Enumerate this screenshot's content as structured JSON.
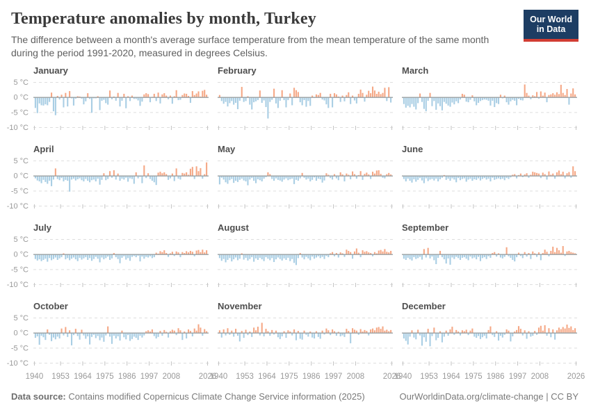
{
  "header": {
    "title": "Temperature anomalies by month, Turkey",
    "subtitle": "The difference between a month's average surface temperature from the mean temperature of the same month during the period 1991-2020, measured in degrees Celsius.",
    "logo": {
      "line1": "Our World",
      "line2": "in Data"
    }
  },
  "colors": {
    "positive_bar": "#f5a886",
    "negative_bar": "#a9cee4",
    "zero_line": "#9aa0a3",
    "grid_line": "#dedede",
    "tick_mark": "#c2c2c2",
    "axis_label": "#999999",
    "panel_title": "#4e4e4e",
    "logo_navy": "#1d3d63",
    "logo_red": "#d13d33"
  },
  "chart_data": {
    "type": "bar",
    "title": "Temperature anomalies by month, Turkey",
    "unit": "°C",
    "x_start_year": 1940,
    "x_end_year": 2025,
    "x_ticks": [
      1940,
      1953,
      1964,
      1975,
      1986,
      1997,
      2008,
      2026
    ],
    "y_ticks": [
      5,
      0,
      -5,
      -10
    ],
    "y_tick_labels": [
      "5 °C",
      "0 °C",
      "-5 °C",
      "-10 °C"
    ],
    "ylim": [
      -11.5,
      6.5
    ],
    "grid": "dashed horizontal lines at 5, -5, -10; solid zero line",
    "legend": "none",
    "series": [
      {
        "name": "January",
        "values": [
          -3.5,
          -5.2,
          -2.0,
          -2.6,
          -2.7,
          -2.3,
          -2.6,
          -1.5,
          1.6,
          -4.6,
          -5.9,
          0.5,
          -0.7,
          0.9,
          -3.3,
          1.5,
          -3.0,
          2.1,
          -0.3,
          -2.7,
          -0.4,
          0.4,
          0.3,
          -0.4,
          -2.3,
          -1.3,
          1.4,
          -0.5,
          -5.1,
          -0.3,
          -0.3,
          0.4,
          -4.2,
          -1.1,
          -0.8,
          -1.9,
          -2.4,
          2.3,
          -0.6,
          0.3,
          -1.1,
          1.5,
          -3.0,
          -1.1,
          1.2,
          -3.6,
          0.4,
          -1.2,
          0.6,
          -0.5,
          -0.5,
          -1.0,
          -2.8,
          -1.4,
          1.0,
          1.4,
          1.1,
          -1.6,
          0.2,
          1.2,
          -1.2,
          1.6,
          -2.0,
          1.0,
          1.4,
          0.6,
          -0.6,
          0.6,
          -2.1,
          0.4,
          2.4,
          -0.9,
          -0.8,
          0.8,
          1.3,
          1.2,
          0.5,
          -1.8,
          2.1,
          0.8,
          1.3,
          2.0,
          0.3,
          2.2,
          2.5,
          0.9
        ]
      },
      {
        "name": "February",
        "values": [
          0.8,
          -1.2,
          -2.1,
          -1.5,
          -3.0,
          -1.9,
          -1.2,
          -2.4,
          -1.8,
          -3.9,
          -1.1,
          3.5,
          -1.5,
          -1.2,
          0.4,
          -2.4,
          -4.0,
          -1.6,
          -1.3,
          -0.9,
          2.3,
          -1.8,
          -1.0,
          -3.2,
          -7.0,
          -1.5,
          -0.8,
          2.9,
          -2.0,
          -3.5,
          -1.1,
          2.4,
          -0.9,
          -3.3,
          -0.9,
          1.3,
          -2.6,
          3.2,
          2.4,
          1.8,
          -1.6,
          -2.6,
          -0.9,
          -3.1,
          -1.2,
          -2.8,
          0.6,
          -0.2,
          1.0,
          0.8,
          1.5,
          -0.7,
          -1.0,
          -2.3,
          -3.5,
          1.2,
          -3.3,
          1.4,
          1.0,
          0.3,
          -1.5,
          0.6,
          -1.3,
          0.8,
          1.7,
          -2.2,
          0.6,
          -1.0,
          -2.0,
          1.2,
          2.6,
          1.5,
          -1.4,
          0.9,
          2.2,
          1.4,
          3.6,
          2.3,
          1.2,
          1.9,
          1.1,
          1.5,
          3.2,
          -1.2,
          3.4,
          -1.7
        ]
      },
      {
        "name": "March",
        "values": [
          -2.2,
          -3.4,
          -2.8,
          -3.3,
          -2.2,
          -3.1,
          -4.0,
          -1.9,
          1.3,
          -1.5,
          -3.8,
          -4.6,
          -1.1,
          1.5,
          -2.9,
          -1.2,
          -4.1,
          -2.0,
          -2.9,
          -4.3,
          -1.5,
          -2.1,
          -2.7,
          -3.1,
          -1.7,
          -2.3,
          -1.3,
          -1.9,
          -0.7,
          1.2,
          0.9,
          -1.4,
          -1.6,
          -0.8,
          0.7,
          -1.3,
          -2.6,
          -1.8,
          -1.2,
          -0.9,
          -0.7,
          -0.8,
          -1.1,
          -2.7,
          -1.1,
          -3.2,
          -1.9,
          -2.2,
          0.9,
          -0.3,
          0.6,
          -1.6,
          -2.4,
          -1.3,
          -0.8,
          -1.1,
          -2.6,
          -0.5,
          -0.9,
          -1.0,
          4.3,
          1.5,
          0.6,
          -0.6,
          0.7,
          0.4,
          1.8,
          -0.4,
          2.0,
          0.6,
          1.6,
          -1.6,
          0.8,
          1.0,
          1.4,
          0.9,
          1.7,
          1.1,
          4.2,
          1.5,
          0.8,
          2.8,
          -2.4,
          1.3,
          3.0,
          1.0
        ]
      },
      {
        "name": "April",
        "values": [
          -0.8,
          -1.5,
          -1.8,
          -2.4,
          -1.3,
          -2.0,
          -2.6,
          -1.6,
          -3.4,
          -1.2,
          2.5,
          -1.0,
          -1.4,
          -0.7,
          -1.8,
          -1.3,
          -1.6,
          -5.2,
          -1.2,
          -0.9,
          -1.5,
          -1.1,
          -0.8,
          -1.4,
          -1.8,
          -1.0,
          -1.6,
          -2.1,
          -1.4,
          -1.2,
          -1.8,
          -0.9,
          -2.9,
          -1.3,
          0.9,
          -1.4,
          -1.0,
          1.6,
          -0.6,
          1.9,
          -1.2,
          0.8,
          -1.6,
          -0.9,
          -1.2,
          -0.6,
          -1.9,
          -0.8,
          -1.0,
          -2.6,
          1.2,
          -0.8,
          -0.3,
          -2.4,
          3.5,
          -0.7,
          0.9,
          -1.0,
          -1.6,
          -2.1,
          -3.0,
          1.1,
          1.4,
          0.9,
          1.2,
          0.6,
          -1.3,
          -0.8,
          0.8,
          -1.7,
          2.5,
          -0.9,
          -1.2,
          1.0,
          0.8,
          1.2,
          0.4,
          2.4,
          3.0,
          -1.0,
          3.2,
          1.6,
          2.6,
          -0.9,
          0.6,
          4.5
        ]
      },
      {
        "name": "May",
        "values": [
          -2.8,
          -0.6,
          -1.2,
          -2.1,
          -2.6,
          -1.4,
          -1.0,
          -2.3,
          -1.6,
          -2.0,
          -1.3,
          -0.9,
          -1.5,
          -1.8,
          -3.1,
          -1.2,
          -0.7,
          -1.6,
          -2.4,
          -1.1,
          -1.4,
          -1.8,
          -0.9,
          -0.4,
          1.2,
          0.6,
          -1.0,
          -1.6,
          -0.8,
          -1.3,
          -1.5,
          -1.9,
          -1.2,
          -0.8,
          -1.4,
          -1.1,
          -0.9,
          -2.7,
          -1.3,
          -1.6,
          -0.8,
          1.0,
          -0.6,
          -1.2,
          -0.9,
          -1.8,
          -1.3,
          -0.5,
          -1.6,
          -0.9,
          -1.1,
          -2.2,
          -1.5,
          0.9,
          0.4,
          -0.7,
          -1.2,
          0.6,
          -0.8,
          -1.4,
          1.2,
          0.5,
          -1.8,
          0.8,
          0.4,
          -1.1,
          1.5,
          0.6,
          -0.9,
          0.3,
          1.6,
          -1.3,
          0.7,
          1.1,
          0.5,
          -1.0,
          1.4,
          0.8,
          1.8,
          1.9,
          0.7,
          -0.6,
          -0.8,
          0.6,
          1.0,
          0.5
        ]
      },
      {
        "name": "June",
        "values": [
          -1.0,
          -1.8,
          -0.9,
          -1.6,
          -2.2,
          -1.1,
          -1.9,
          -1.3,
          -0.7,
          -1.5,
          -2.4,
          -0.8,
          -1.7,
          -1.2,
          -1.0,
          -1.5,
          -0.9,
          -1.8,
          -1.1,
          -0.6,
          0.3,
          -1.3,
          -0.9,
          -1.6,
          -0.8,
          -1.2,
          -2.1,
          -0.7,
          -1.4,
          -1.0,
          -0.8,
          -1.9,
          -1.2,
          -0.9,
          -1.6,
          -1.1,
          -1.3,
          -0.8,
          -1.5,
          -1.0,
          -0.7,
          -1.2,
          -0.9,
          -1.8,
          -0.6,
          -1.3,
          -1.0,
          -0.8,
          -1.1,
          -0.9,
          -1.4,
          -0.7,
          -1.0,
          -0.5,
          0.4,
          0.6,
          -0.8,
          0.3,
          0.8,
          -0.4,
          0.5,
          0.9,
          -0.6,
          0.4,
          1.4,
          1.2,
          1.0,
          0.8,
          -0.7,
          1.1,
          0.6,
          -1.2,
          1.5,
          0.4,
          0.8,
          -0.9,
          1.2,
          1.8,
          0.6,
          1.4,
          -0.8,
          0.9,
          1.3,
          -0.6,
          3.2,
          1.6
        ]
      },
      {
        "name": "July",
        "values": [
          -1.5,
          -2.0,
          -1.6,
          -2.2,
          -1.8,
          -1.4,
          -2.4,
          -1.2,
          -1.9,
          -1.5,
          -1.0,
          -1.8,
          -1.3,
          -0.9,
          0.4,
          -1.6,
          -1.2,
          -1.9,
          -1.4,
          -1.0,
          -1.6,
          -2.2,
          -1.1,
          -1.7,
          -1.3,
          -0.9,
          -1.8,
          -1.2,
          -2.1,
          -1.5,
          -0.8,
          -1.4,
          -2.6,
          -1.0,
          -1.6,
          -1.2,
          -0.7,
          -1.8,
          -1.3,
          0.5,
          -0.9,
          -1.5,
          -2.9,
          -1.1,
          -0.6,
          -1.7,
          -1.2,
          -2.1,
          -0.8,
          -0.5,
          -0.9,
          -0.4,
          -2.3,
          -0.7,
          -1.4,
          -0.8,
          -1.0,
          -0.6,
          -1.2,
          -0.9,
          0.6,
          0.3,
          1.1,
          0.8,
          1.4,
          0.5,
          -0.8,
          0.4,
          0.9,
          -0.5,
          1.0,
          0.7,
          -0.9,
          0.8,
          0.5,
          1.1,
          0.7,
          1.2,
          0.9,
          -0.6,
          1.3,
          1.5,
          0.8,
          1.6,
          0.7,
          1.4
        ]
      },
      {
        "name": "August",
        "values": [
          -1.2,
          -2.1,
          -1.5,
          -2.6,
          -1.8,
          -1.2,
          -2.3,
          -1.6,
          -1.0,
          -1.9,
          -1.4,
          0.4,
          -1.7,
          -1.1,
          -2.0,
          -1.5,
          -0.9,
          -2.4,
          -1.3,
          -1.8,
          -1.1,
          -1.6,
          -2.2,
          -0.9,
          -1.4,
          -1.9,
          -1.2,
          -2.5,
          -1.6,
          -1.0,
          -1.5,
          -2.0,
          -1.3,
          -1.8,
          -1.1,
          -2.2,
          -1.5,
          -2.8,
          -3.5,
          -1.2,
          0.5,
          -1.0,
          -1.6,
          -0.8,
          -1.3,
          -1.9,
          -0.7,
          -1.4,
          -1.0,
          -0.6,
          -1.2,
          -0.8,
          -1.5,
          -0.5,
          -0.9,
          0.4,
          0.8,
          -0.6,
          0.5,
          -1.0,
          0.7,
          0.4,
          -0.8,
          1.6,
          1.2,
          0.8,
          -1.4,
          1.0,
          2.0,
          0.6,
          -0.9,
          1.4,
          0.9,
          1.1,
          0.7,
          0.5,
          -0.6,
          0.8,
          0.4,
          1.3,
          1.5,
          1.0,
          1.8,
          0.9,
          0.7,
          1.2
        ]
      },
      {
        "name": "September",
        "values": [
          -1.4,
          -1.8,
          -1.1,
          -1.6,
          -2.0,
          -0.9,
          -1.5,
          -1.2,
          -0.8,
          -1.7,
          1.8,
          -1.0,
          2.2,
          -1.3,
          -0.7,
          -1.9,
          -3.2,
          -1.1,
          1.2,
          -0.9,
          -1.6,
          -3.0,
          -1.3,
          -3.4,
          -1.0,
          -1.5,
          -0.8,
          -1.2,
          -1.8,
          -1.1,
          -0.9,
          -1.4,
          -1.9,
          -0.7,
          -1.3,
          -1.0,
          -1.6,
          -0.8,
          -2.2,
          -1.2,
          -0.9,
          -1.5,
          -0.6,
          -1.1,
          0.5,
          0.8,
          -0.7,
          0.4,
          -1.0,
          -1.3,
          -0.8,
          2.4,
          -0.6,
          -1.1,
          -1.8,
          -2.3,
          -0.9,
          0.6,
          -0.5,
          -1.2,
          0.8,
          -0.7,
          0.5,
          -1.5,
          1.0,
          0.4,
          -0.8,
          0.7,
          -1.9,
          0.5,
          1.6,
          0.9,
          -0.6,
          1.2,
          2.6,
          0.8,
          2.2,
          1.4,
          0.6,
          2.8,
          -0.5,
          1.0,
          1.2,
          0.8,
          0.6,
          0.4
        ]
      },
      {
        "name": "October",
        "values": [
          -1.6,
          -1.1,
          -3.9,
          -0.9,
          -1.4,
          -2.3,
          1.2,
          -0.6,
          -2.7,
          -1.5,
          -2.1,
          -1.2,
          -1.8,
          1.5,
          -0.8,
          2.0,
          -1.3,
          0.9,
          -4.1,
          -0.7,
          1.4,
          -1.0,
          -2.2,
          1.1,
          -0.8,
          -1.9,
          -1.1,
          -3.8,
          -1.3,
          -0.6,
          -1.7,
          -1.0,
          -2.4,
          -1.5,
          -2.9,
          -0.8,
          2.2,
          -1.2,
          -3.6,
          -0.9,
          -1.8,
          -1.1,
          -2.5,
          0.8,
          -1.4,
          -2.1,
          -0.7,
          -2.6,
          -2.0,
          -1.2,
          -1.6,
          -2.3,
          -0.9,
          -1.5,
          -0.8,
          0.6,
          0.9,
          0.5,
          1.2,
          -1.0,
          -1.8,
          -1.3,
          0.7,
          -0.9,
          1.0,
          0.4,
          -1.5,
          0.6,
          1.1,
          0.8,
          -0.7,
          1.6,
          0.9,
          -2.3,
          0.5,
          -1.8,
          1.2,
          0.7,
          -1.1,
          1.5,
          0.8,
          2.9,
          1.8,
          -0.9,
          1.3,
          0.6
        ]
      },
      {
        "name": "November",
        "values": [
          0.9,
          -1.5,
          1.2,
          -0.8,
          1.6,
          -0.6,
          0.8,
          -1.2,
          1.4,
          -0.9,
          -2.8,
          0.7,
          -1.6,
          1.1,
          -0.7,
          0.5,
          -1.3,
          1.8,
          0.9,
          2.1,
          -0.8,
          3.4,
          -1.1,
          1.4,
          0.6,
          -0.9,
          1.0,
          -0.5,
          0.8,
          -1.4,
          -2.0,
          -1.1,
          0.6,
          -1.6,
          0.9,
          0.5,
          -0.8,
          1.2,
          -2.4,
          0.7,
          -1.9,
          -2.2,
          0.8,
          -0.6,
          -1.2,
          0.5,
          -1.5,
          -1.8,
          0.6,
          -1.3,
          -1.9,
          0.8,
          -0.5,
          1.5,
          0.9,
          -0.7,
          1.2,
          0.6,
          -0.9,
          0.4,
          -1.1,
          -0.8,
          -1.3,
          1.4,
          0.7,
          -3.4,
          1.6,
          1.1,
          0.8,
          -0.6,
          1.3,
          0.5,
          1.0,
          0.7,
          -0.8,
          1.2,
          1.5,
          0.9,
          1.8,
          2.0,
          1.4,
          2.2,
          0.8,
          1.1,
          0.6,
          1.0
        ]
      },
      {
        "name": "December",
        "values": [
          -1.8,
          -2.6,
          -3.8,
          -1.2,
          0.9,
          -1.5,
          -2.1,
          1.1,
          -0.8,
          -4.2,
          -1.4,
          -2.9,
          1.4,
          -4.4,
          -1.0,
          1.8,
          -2.4,
          -1.6,
          0.6,
          -3.1,
          -1.2,
          0.8,
          -0.9,
          1.2,
          2.1,
          -0.6,
          1.0,
          0.5,
          -0.8,
          0.9,
          0.6,
          1.1,
          -0.7,
          0.8,
          1.5,
          -1.2,
          -1.6,
          -1.0,
          -2.0,
          -1.4,
          -0.9,
          -1.8,
          1.0,
          2.2,
          -0.7,
          -1.3,
          0.6,
          -2.5,
          -0.9,
          -1.5,
          -0.6,
          1.2,
          0.8,
          -2.8,
          -1.1,
          0.5,
          1.0,
          2.3,
          1.4,
          -0.8,
          0.9,
          -1.9,
          0.6,
          -1.2,
          -0.9,
          0.7,
          -0.6,
          1.8,
          2.4,
          0.8,
          2.6,
          -0.9,
          1.6,
          -1.4,
          1.2,
          -2.2,
          0.9,
          1.8,
          1.3,
          2.0,
          1.5,
          2.8,
          1.7,
          2.2,
          1.0,
          1.6
        ]
      }
    ]
  },
  "footer": {
    "source_label": "Data source:",
    "source_text": "Contains modified Copernicus Climate Change Service information (2025)",
    "link_text": "OurWorldinData.org/climate-change",
    "separator": "|",
    "license_text": "CC BY"
  }
}
